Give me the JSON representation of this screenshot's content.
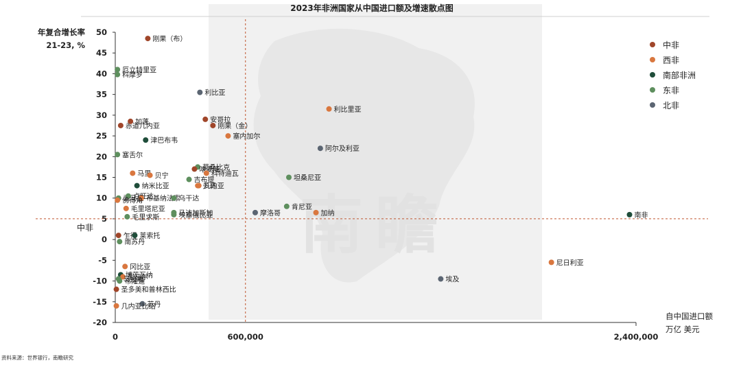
{
  "chart_data": {
    "type": "scatter",
    "title": "2023年非洲国家从中国进口额及增速散点图",
    "xlabel_lines": [
      "自中国进口额",
      "万亿 美元"
    ],
    "ylabel_lines": [
      "年复合增长率",
      "21-23, %"
    ],
    "source": "资料来源：世界银行，南瞻研究",
    "xlim": [
      0,
      2400000
    ],
    "ylim": [
      -20,
      50
    ],
    "xticks": [
      {
        "value": 0,
        "label": "0"
      },
      {
        "value": 600000,
        "label": "600,000"
      },
      {
        "value": 2400000,
        "label": "2,400,000"
      }
    ],
    "yticks": [
      -20,
      -15,
      -10,
      -5,
      0,
      5,
      10,
      15,
      20,
      25,
      30,
      35,
      40,
      45,
      50
    ],
    "ref_x": 600000,
    "ref_y": 5,
    "ref_y_label": "中非",
    "grid": false,
    "legend_position": "right",
    "watermark": "南瞻",
    "regions": [
      {
        "name": "中非",
        "color": "#a0462a"
      },
      {
        "name": "西非",
        "color": "#d9773f"
      },
      {
        "name": "南部非洲",
        "color": "#1f4d3a"
      },
      {
        "name": "东非",
        "color": "#5e8f5e"
      },
      {
        "name": "北非",
        "color": "#5b6572"
      }
    ],
    "points": [
      {
        "name": "刚果（布）",
        "region": 0,
        "x": 150000,
        "y": 48.5
      },
      {
        "name": "厄立特里亚",
        "region": 3,
        "x": 10000,
        "y": 41
      },
      {
        "name": "科摩罗",
        "region": 3,
        "x": 10000,
        "y": 39.8
      },
      {
        "name": "利比亚",
        "region": 4,
        "x": 390000,
        "y": 35.5
      },
      {
        "name": "安哥拉",
        "region": 0,
        "x": 415000,
        "y": 29
      },
      {
        "name": "利比里亚",
        "region": 1,
        "x": 985000,
        "y": 31.5
      },
      {
        "name": "赤道几内亚",
        "region": 0,
        "x": 25000,
        "y": 27.5
      },
      {
        "name": "加蓬",
        "region": 0,
        "x": 70000,
        "y": 28.5
      },
      {
        "name": "刚果（金）",
        "region": 0,
        "x": 450000,
        "y": 27.5
      },
      {
        "name": "塞内加尔",
        "region": 1,
        "x": 520000,
        "y": 25
      },
      {
        "name": "塞舌尔",
        "region": 3,
        "x": 10000,
        "y": 20.5
      },
      {
        "name": "津巴布韦",
        "region": 2,
        "x": 140000,
        "y": 24
      },
      {
        "name": "阿尔及利亚",
        "region": 4,
        "x": 945000,
        "y": 22
      },
      {
        "name": "马里",
        "region": 1,
        "x": 80000,
        "y": 16
      },
      {
        "name": "莫桑比克",
        "region": 3,
        "x": 380000,
        "y": 17.5
      },
      {
        "name": "喀麦隆",
        "region": 0,
        "x": 365000,
        "y": 17
      },
      {
        "name": "科特迪瓦",
        "region": 1,
        "x": 420000,
        "y": 16
      },
      {
        "name": "纳米比亚",
        "region": 2,
        "x": 100000,
        "y": 13
      },
      {
        "name": "贝宁",
        "region": 1,
        "x": 160000,
        "y": 15.5
      },
      {
        "name": "吉布提",
        "region": 3,
        "x": 340000,
        "y": 14.5
      },
      {
        "name": "多哥",
        "region": 1,
        "x": 380000,
        "y": 13
      },
      {
        "name": "几内亚",
        "region": 1,
        "x": 385000,
        "y": 13
      },
      {
        "name": "索马里",
        "region": 3,
        "x": 15000,
        "y": 10
      },
      {
        "name": "卢旺达",
        "region": 3,
        "x": 60000,
        "y": 10.5
      },
      {
        "name": "布基纳法索",
        "region": 1,
        "x": 120000,
        "y": 10
      },
      {
        "name": "乌干达",
        "region": 3,
        "x": 270000,
        "y": 10
      },
      {
        "name": "坦桑尼亚",
        "region": 3,
        "x": 800000,
        "y": 15
      },
      {
        "name": "佛得角",
        "region": 1,
        "x": 10000,
        "y": 9.5
      },
      {
        "name": "毛里塔尼亚",
        "region": 1,
        "x": 50000,
        "y": 7.5
      },
      {
        "name": "马达加斯加",
        "region": 3,
        "x": 270000,
        "y": 6.5
      },
      {
        "name": "毛里求斯",
        "region": 3,
        "x": 55000,
        "y": 5.5
      },
      {
        "name": "摩洛哥",
        "region": 4,
        "x": 645000,
        "y": 6.5
      },
      {
        "name": "肯尼亚",
        "region": 3,
        "x": 790000,
        "y": 8
      },
      {
        "name": "加纳",
        "region": 1,
        "x": 925000,
        "y": 6.5
      },
      {
        "name": "南非",
        "region": 2,
        "x": 2370000,
        "y": 6
      },
      {
        "name": "乍得",
        "region": 0,
        "x": 15000,
        "y": 1
      },
      {
        "name": "莱索托",
        "region": 2,
        "x": 90000,
        "y": 1
      },
      {
        "name": "南苏丹",
        "region": 3,
        "x": 20000,
        "y": -0.5
      },
      {
        "name": "埃塞俄比亚",
        "region": 3,
        "x": 270000,
        "y": 6
      },
      {
        "name": "冈比亚",
        "region": 1,
        "x": 45000,
        "y": -6.5
      },
      {
        "name": "博茨瓦纳",
        "region": 2,
        "x": 25000,
        "y": -8.5
      },
      {
        "name": "尼日尔",
        "region": 1,
        "x": 35000,
        "y": -9
      },
      {
        "name": "马拉维",
        "region": 3,
        "x": 15000,
        "y": -9.5
      },
      {
        "name": "布隆迪",
        "region": 3,
        "x": 20000,
        "y": -10
      },
      {
        "name": "圣多美和普林西比",
        "region": 0,
        "x": 5000,
        "y": -12
      },
      {
        "name": "苏丹",
        "region": 4,
        "x": 125000,
        "y": -15.5
      },
      {
        "name": "几内亚比绍",
        "region": 1,
        "x": 5000,
        "y": -16
      },
      {
        "name": "埃及",
        "region": 4,
        "x": 1500000,
        "y": -9.5
      },
      {
        "name": "尼日利亚",
        "region": 1,
        "x": 2010000,
        "y": -5.5
      }
    ]
  }
}
